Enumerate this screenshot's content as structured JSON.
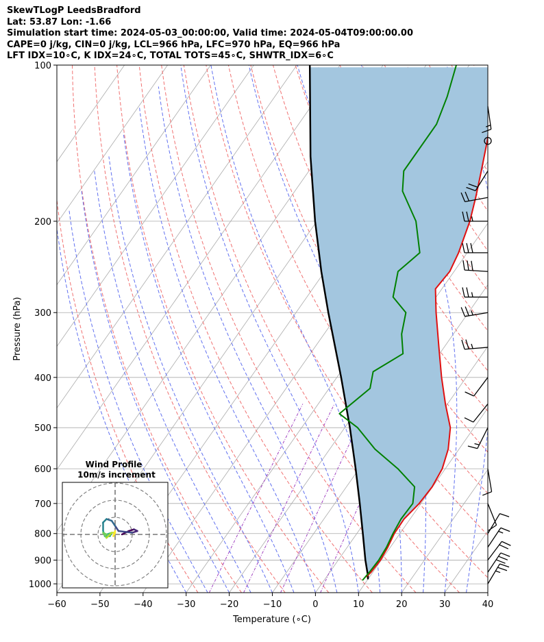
{
  "header": {
    "line1": "SkewTLogP LeedsBradford",
    "line2": "Lat: 53.87   Lon: -1.66",
    "line3": "Simulation start time: 2024-05-03_00:00:00, Valid time: 2024-05-04T09:00:00.00",
    "line4": "CAPE=0 j/kg, CIN=0 j/kg, LCL=966 hPa, LFC=970 hPa, EQ=966 hPa",
    "line5": "LFT IDX=10∘C, K IDX=24∘C, TOTAL TOTS=45∘C, SHWTR_IDX=6∘C"
  },
  "colors": {
    "temperature": "#e01010",
    "dewpoint": "#008000",
    "parcel": "#000000",
    "cape_fill": "#a3c6df",
    "dry_adiabat": "#f07070",
    "moist_adiabat": "#6070f0",
    "mixing_ratio": "#a040c0",
    "isotherm": "#aaaaaa"
  },
  "chart_data": {
    "type": "skewt",
    "xlabel": "Temperature (∘C)",
    "ylabel": "Pressure (hPa)",
    "xlim": [
      -60,
      40
    ],
    "ylim": [
      1040,
      100
    ],
    "x_ticks": [
      -60,
      -50,
      -40,
      -30,
      -20,
      -10,
      0,
      10,
      20,
      30,
      40
    ],
    "x_tick_labels": [
      "−60",
      "−50",
      "−40",
      "−30",
      "−20",
      "−10",
      "0",
      "10",
      "20",
      "30",
      "40"
    ],
    "y_ticks": [
      100,
      200,
      300,
      400,
      500,
      600,
      700,
      800,
      900,
      1000
    ],
    "y_tick_labels": [
      "100",
      "200",
      "300",
      "400",
      "500",
      "600",
      "700",
      "800",
      "900",
      "1000"
    ],
    "temperature": [
      {
        "p": 970,
        "t": 9.2
      },
      {
        "p": 950,
        "t": 9.6
      },
      {
        "p": 900,
        "t": 9.8
      },
      {
        "p": 850,
        "t": 9.4
      },
      {
        "p": 800,
        "t": 8.7
      },
      {
        "p": 750,
        "t": 8.6
      },
      {
        "p": 700,
        "t": 9.6
      },
      {
        "p": 650,
        "t": 9.9
      },
      {
        "p": 600,
        "t": 9.3
      },
      {
        "p": 550,
        "t": 7.5
      },
      {
        "p": 500,
        "t": 4.5
      },
      {
        "p": 450,
        "t": -0.5
      },
      {
        "p": 400,
        "t": -5.7
      },
      {
        "p": 350,
        "t": -11.2
      },
      {
        "p": 300,
        "t": -17.5
      },
      {
        "p": 270,
        "t": -21.5
      },
      {
        "p": 250,
        "t": -21.0
      },
      {
        "p": 230,
        "t": -22.0
      },
      {
        "p": 200,
        "t": -24.5
      },
      {
        "p": 180,
        "t": -27.0
      },
      {
        "p": 160,
        "t": -30.0
      },
      {
        "p": 140,
        "t": -33.5
      },
      {
        "p": 120,
        "t": -38.0
      },
      {
        "p": 100,
        "t": -43.5
      }
    ],
    "dewpoint": [
      {
        "p": 985,
        "t": 8.9
      },
      {
        "p": 950,
        "t": 9.2
      },
      {
        "p": 900,
        "t": 9.4
      },
      {
        "p": 850,
        "t": 9.1
      },
      {
        "p": 800,
        "t": 8.4
      },
      {
        "p": 750,
        "t": 7.9
      },
      {
        "p": 700,
        "t": 8.1
      },
      {
        "p": 650,
        "t": 5.8
      },
      {
        "p": 600,
        "t": -1.0
      },
      {
        "p": 550,
        "t": -9.5
      },
      {
        "p": 500,
        "t": -17.0
      },
      {
        "p": 470,
        "t": -23.5
      },
      {
        "p": 420,
        "t": -20.5
      },
      {
        "p": 390,
        "t": -22.5
      },
      {
        "p": 360,
        "t": -18.5
      },
      {
        "p": 330,
        "t": -22.0
      },
      {
        "p": 300,
        "t": -24.5
      },
      {
        "p": 280,
        "t": -30.0
      },
      {
        "p": 250,
        "t": -33.0
      },
      {
        "p": 230,
        "t": -31.0
      },
      {
        "p": 200,
        "t": -37.0
      },
      {
        "p": 175,
        "t": -45.0
      },
      {
        "p": 160,
        "t": -48.0
      },
      {
        "p": 130,
        "t": -48.0
      },
      {
        "p": 115,
        "t": -50.0
      },
      {
        "p": 100,
        "t": -53.0
      }
    ],
    "parcel_profile": [
      {
        "p": 980,
        "t": 10.0
      },
      {
        "p": 966,
        "t": 9.5
      },
      {
        "p": 900,
        "t": 6.3
      },
      {
        "p": 800,
        "t": 1.4
      },
      {
        "p": 700,
        "t": -4.2
      },
      {
        "p": 600,
        "t": -10.8
      },
      {
        "p": 500,
        "t": -18.8
      },
      {
        "p": 400,
        "t": -29.0
      },
      {
        "p": 300,
        "t": -42.5
      },
      {
        "p": 250,
        "t": -50.8
      },
      {
        "p": 200,
        "t": -60.4
      },
      {
        "p": 150,
        "t": -72.0
      },
      {
        "p": 100,
        "t": -87.0
      }
    ],
    "wind_barbs": [
      {
        "p": 1000,
        "u": -6,
        "v": -10
      },
      {
        "p": 950,
        "u": -8,
        "v": -12
      },
      {
        "p": 900,
        "u": -6,
        "v": -8
      },
      {
        "p": 850,
        "u": -4,
        "v": -6
      },
      {
        "p": 800,
        "u": -3,
        "v": -5
      },
      {
        "p": 700,
        "u": -2,
        "v": 5
      },
      {
        "p": 600,
        "u": -1,
        "v": 6
      },
      {
        "p": 500,
        "u": 3,
        "v": 6
      },
      {
        "p": 450,
        "u": 4,
        "v": 5
      },
      {
        "p": 400,
        "u": 3,
        "v": 4
      },
      {
        "p": 350,
        "u": 12,
        "v": 1
      },
      {
        "p": 300,
        "u": 12,
        "v": 2
      },
      {
        "p": 280,
        "u": 14,
        "v": 0
      },
      {
        "p": 250,
        "u": 16,
        "v": -1
      },
      {
        "p": 230,
        "u": 15,
        "v": 0
      },
      {
        "p": 200,
        "u": 14,
        "v": 0
      },
      {
        "p": 180,
        "u": 11,
        "v": 2
      },
      {
        "p": 160,
        "u": 5,
        "v": 8
      },
      {
        "p": 140,
        "u": 0,
        "v": 0
      },
      {
        "p": 120,
        "u": -1,
        "v": 7
      }
    ],
    "hodograph": {
      "title_line1": "Wind Profile",
      "title_line2": "10m/s increment",
      "increment_ms": 10,
      "rings": [
        10,
        20,
        30
      ],
      "points": [
        {
          "u": 4,
          "v": 0
        },
        {
          "u": 8,
          "v": 2
        },
        {
          "u": 11,
          "v": 3
        },
        {
          "u": 13,
          "v": 2
        },
        {
          "u": 10,
          "v": 1
        },
        {
          "u": 2,
          "v": 2
        },
        {
          "u": 0,
          "v": 5
        },
        {
          "u": -2,
          "v": 8
        },
        {
          "u": -5,
          "v": 9
        },
        {
          "u": -7,
          "v": 7
        },
        {
          "u": -7,
          "v": 2
        },
        {
          "u": -6,
          "v": -1
        },
        {
          "u": -3,
          "v": -1
        },
        {
          "u": -2,
          "v": 1
        },
        {
          "u": -5,
          "v": 0
        },
        {
          "u": -7,
          "v": 1
        },
        {
          "u": -5,
          "v": -2
        },
        {
          "u": -2,
          "v": 1
        },
        {
          "u": 0,
          "v": 1
        },
        {
          "u": -1,
          "v": -1
        },
        {
          "u": 0,
          "v": 2
        }
      ]
    }
  }
}
